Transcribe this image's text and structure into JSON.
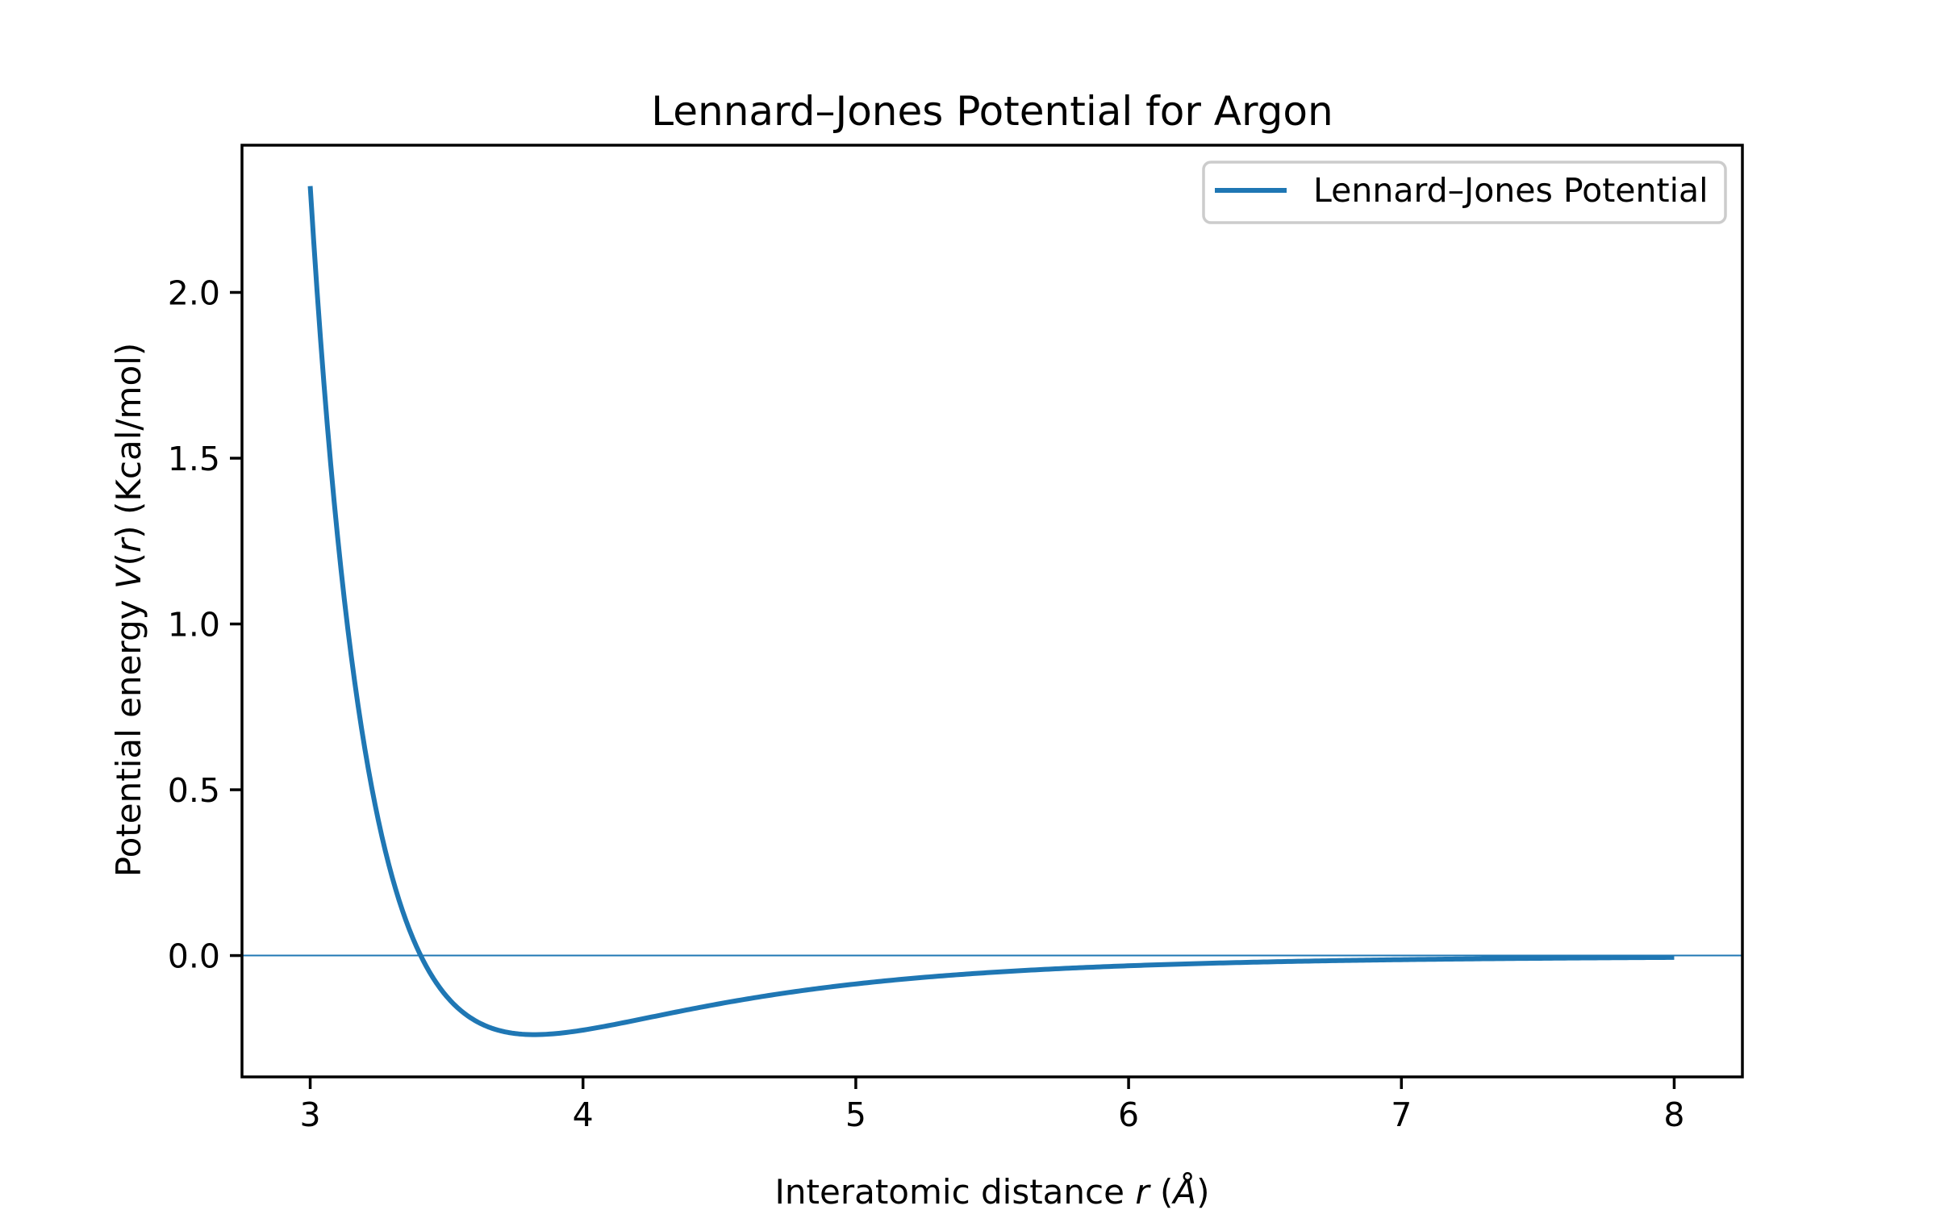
{
  "chart_data": {
    "type": "line",
    "title": "Lennard–Jones Potential for Argon",
    "xlabel": "Interatomic distance r (Å)",
    "xlabel_parts": {
      "prefix": "Interatomic distance ",
      "var": "r",
      "mid": " (",
      "unit": "Å",
      "suffix": ")"
    },
    "ylabel": "Potential energy V(r) (Kcal/mol)",
    "ylabel_parts": {
      "prefix": "Potential energy ",
      "v": "V",
      "p1": "(",
      "var": "r",
      "p2": ")",
      "suffix": " (Kcal/mol)"
    },
    "xlim": [
      2.75,
      8.25
    ],
    "ylim": [
      -0.366,
      2.444
    ],
    "xticks": [
      3,
      4,
      5,
      6,
      7,
      8
    ],
    "xtick_labels": [
      "3",
      "4",
      "5",
      "6",
      "7",
      "8"
    ],
    "yticks": [
      0.0,
      0.5,
      1.0,
      1.5,
      2.0
    ],
    "ytick_labels": [
      "0.0",
      "0.5",
      "1.0",
      "1.5",
      "2.0"
    ],
    "grid": false,
    "legend_position": "upper right",
    "hline": {
      "y": 0.0,
      "color": "#1f77b4"
    },
    "series": [
      {
        "name": "Lennard–Jones Potential",
        "color": "#1f77b4",
        "model": {
          "epsilon_kcal_mol": 0.2385,
          "sigma_angstrom": 3.405,
          "r_start": 3.0,
          "r_end": 8.0,
          "n_points": 400
        },
        "x": [
          3.0,
          3.1,
          3.2,
          3.3,
          3.4,
          3.5,
          3.6,
          3.7,
          3.82,
          4.0,
          4.25,
          4.5,
          5.0,
          5.5,
          6.0,
          6.5,
          7.0,
          7.5,
          8.0
        ],
        "values": [
          2.316,
          1.44,
          0.852,
          0.458,
          0.198,
          0.033,
          -0.079,
          -0.168,
          -0.2385,
          -0.216,
          -0.168,
          -0.126,
          -0.074,
          -0.044,
          -0.028,
          -0.018,
          -0.012,
          -0.009,
          -0.006
        ]
      }
    ]
  },
  "legend": {
    "label": "Lennard–Jones Potential"
  },
  "colors": {
    "line": "#1f77b4",
    "axes": "#000000",
    "legend_border": "#cccccc",
    "background": "#ffffff"
  }
}
